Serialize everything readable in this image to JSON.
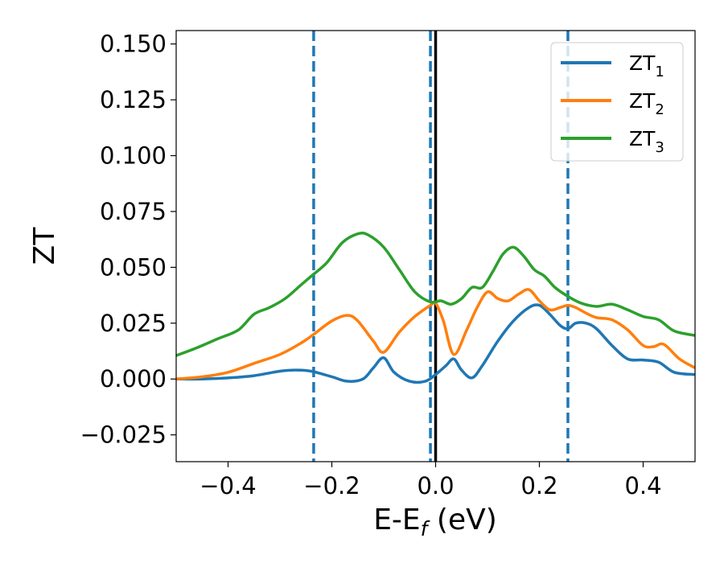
{
  "chart_data": {
    "type": "line",
    "xlabel": "E-E",
    "xlabel_sub": "f",
    "xlabel_unit": " (eV)",
    "ylabel": "ZT",
    "xlim": [
      -0.5,
      0.5
    ],
    "ylim": [
      -0.037,
      0.156
    ],
    "x_ticks": [
      -0.4,
      -0.2,
      0.0,
      0.2,
      0.4
    ],
    "x_tick_labels": [
      "−0.4",
      "−0.2",
      "0.0",
      "0.2",
      "0.4"
    ],
    "y_ticks": [
      -0.025,
      0.0,
      0.025,
      0.05,
      0.075,
      0.1,
      0.125,
      0.15
    ],
    "y_tick_labels": [
      "−0.025",
      "0.000",
      "0.025",
      "0.050",
      "0.075",
      "0.100",
      "0.125",
      "0.150"
    ],
    "grid": false,
    "legend_position": "top-right",
    "vertical_lines": [
      {
        "x": -0.235,
        "style": "dashed",
        "color": "#1f77b4"
      },
      {
        "x": -0.01,
        "style": "dashed",
        "color": "#1f77b4"
      },
      {
        "x": 0.255,
        "style": "dashed",
        "color": "#1f77b4"
      },
      {
        "x": 0.0,
        "style": "solid",
        "color": "#000000"
      }
    ],
    "series": [
      {
        "name": "ZT",
        "name_sub": "1",
        "color": "#1f77b4",
        "x": [
          -0.5,
          -0.45,
          -0.4,
          -0.35,
          -0.3,
          -0.27,
          -0.24,
          -0.2,
          -0.17,
          -0.14,
          -0.12,
          -0.1,
          -0.08,
          -0.05,
          -0.02,
          0.0,
          0.02,
          0.035,
          0.05,
          0.07,
          0.09,
          0.12,
          0.15,
          0.18,
          0.2,
          0.22,
          0.24,
          0.255,
          0.27,
          0.29,
          0.31,
          0.34,
          0.37,
          0.4,
          0.43,
          0.46,
          0.5
        ],
        "values": [
          0.0,
          0.0,
          0.0005,
          0.0015,
          0.0035,
          0.004,
          0.0035,
          0.001,
          -0.001,
          0.0,
          0.005,
          0.0095,
          0.003,
          -0.001,
          -0.001,
          0.002,
          0.006,
          0.009,
          0.004,
          0.0005,
          0.006,
          0.017,
          0.026,
          0.032,
          0.033,
          0.029,
          0.024,
          0.0225,
          0.025,
          0.025,
          0.0225,
          0.015,
          0.009,
          0.0085,
          0.0075,
          0.003,
          0.002
        ]
      },
      {
        "name": "ZT",
        "name_sub": "2",
        "color": "#ff7f0e",
        "x": [
          -0.5,
          -0.45,
          -0.4,
          -0.35,
          -0.3,
          -0.26,
          -0.235,
          -0.2,
          -0.17,
          -0.15,
          -0.12,
          -0.1,
          -0.07,
          -0.04,
          -0.01,
          0.0,
          0.015,
          0.035,
          0.06,
          0.08,
          0.1,
          0.12,
          0.14,
          0.16,
          0.18,
          0.2,
          0.22,
          0.24,
          0.255,
          0.27,
          0.29,
          0.31,
          0.34,
          0.37,
          0.4,
          0.42,
          0.44,
          0.47,
          0.5
        ],
        "values": [
          0.0,
          0.001,
          0.003,
          0.007,
          0.011,
          0.016,
          0.02,
          0.026,
          0.0285,
          0.026,
          0.017,
          0.012,
          0.021,
          0.028,
          0.033,
          0.034,
          0.026,
          0.011,
          0.022,
          0.032,
          0.039,
          0.036,
          0.035,
          0.038,
          0.04,
          0.035,
          0.031,
          0.032,
          0.033,
          0.032,
          0.0295,
          0.0275,
          0.0265,
          0.022,
          0.015,
          0.0145,
          0.0155,
          0.009,
          0.005
        ]
      },
      {
        "name": "ZT",
        "name_sub": "3",
        "color": "#2ca02c",
        "x": [
          -0.5,
          -0.46,
          -0.42,
          -0.38,
          -0.35,
          -0.32,
          -0.29,
          -0.26,
          -0.24,
          -0.21,
          -0.18,
          -0.15,
          -0.13,
          -0.1,
          -0.07,
          -0.04,
          -0.01,
          0.01,
          0.03,
          0.05,
          0.07,
          0.09,
          0.11,
          0.13,
          0.15,
          0.17,
          0.19,
          0.21,
          0.23,
          0.255,
          0.28,
          0.31,
          0.34,
          0.37,
          0.4,
          0.43,
          0.46,
          0.5
        ],
        "values": [
          0.0105,
          0.014,
          0.018,
          0.022,
          0.029,
          0.032,
          0.036,
          0.042,
          0.046,
          0.052,
          0.061,
          0.065,
          0.0645,
          0.059,
          0.049,
          0.039,
          0.0345,
          0.035,
          0.0335,
          0.036,
          0.041,
          0.041,
          0.048,
          0.056,
          0.059,
          0.055,
          0.049,
          0.046,
          0.041,
          0.037,
          0.034,
          0.0325,
          0.0335,
          0.031,
          0.028,
          0.0265,
          0.0215,
          0.0195
        ]
      }
    ]
  }
}
